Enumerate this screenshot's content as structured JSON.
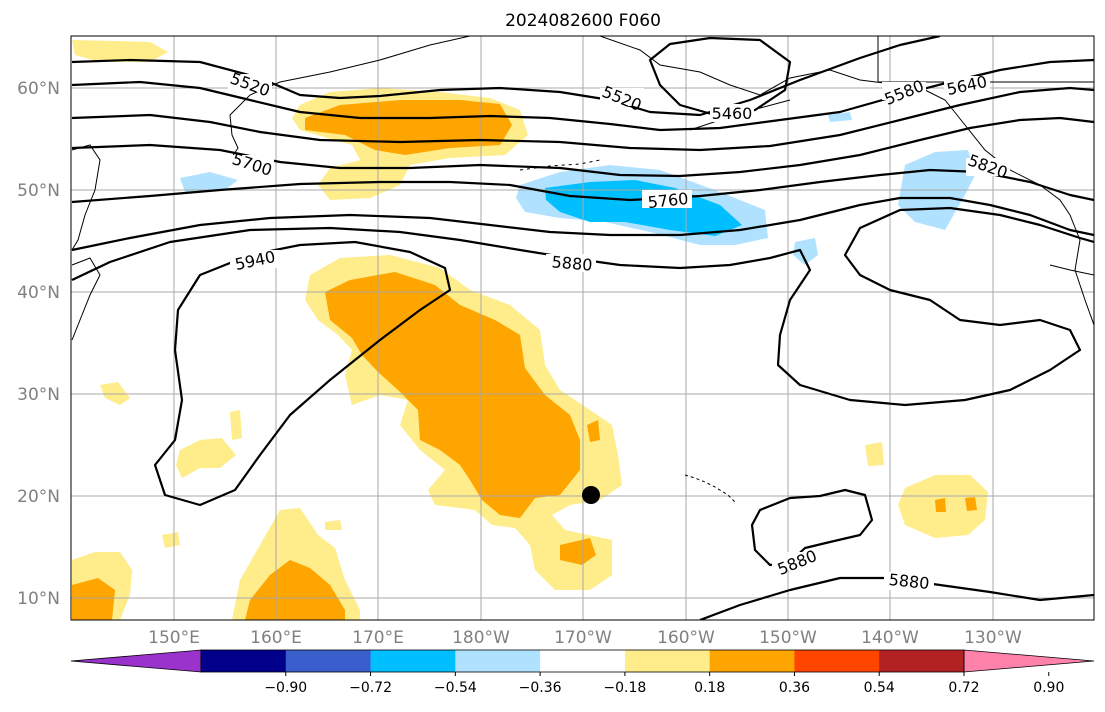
{
  "title": "2024082600 F060",
  "map": {
    "lat_labels": [
      "60°N",
      "50°N",
      "40°N",
      "30°N",
      "20°N",
      "10°N"
    ],
    "lon_labels": [
      "150°E",
      "160°E",
      "170°E",
      "180°W",
      "170°W",
      "160°W",
      "150°W",
      "140°W",
      "130°W"
    ],
    "contour_labels": [
      "5520",
      "5520",
      "5460",
      "5580",
      "5640",
      "5700",
      "5760",
      "5820",
      "5880",
      "5940",
      "5880",
      "5880"
    ],
    "marker": "storm-center-dot"
  },
  "colorbar": {
    "colors": [
      "#9933cc",
      "#00008b",
      "#3a5fcd",
      "#00bfff",
      "#b0e2ff",
      "#ffffff",
      "#ffec8b",
      "#ffa500",
      "#ff4500",
      "#b22222",
      "#ff82ab"
    ],
    "tick_labels": [
      "−0.90",
      "−0.72",
      "−0.54",
      "−0.36",
      "−0.18",
      "0.18",
      "0.36",
      "0.54",
      "0.72",
      "0.90"
    ]
  }
}
